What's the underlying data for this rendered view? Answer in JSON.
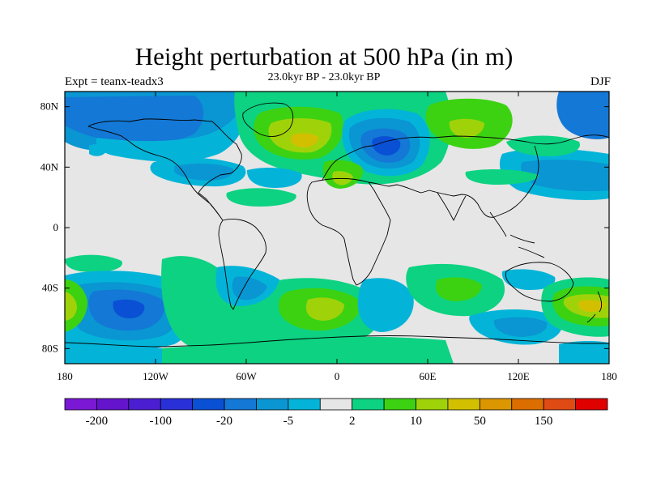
{
  "header": {
    "title": "Height perturbation at 500 hPa (in m)",
    "subtitle": "23.0kyr BP - 23.0kyr BP",
    "left_label": "Expt = teanx-teadx3",
    "right_label": "DJF"
  },
  "map": {
    "lon_range": [
      -180,
      180
    ],
    "lat_range": [
      -90,
      90
    ],
    "lat_ticks": [
      {
        "value": 80,
        "label": "80N"
      },
      {
        "value": 40,
        "label": "40N"
      },
      {
        "value": 0,
        "label": "0"
      },
      {
        "value": -40,
        "label": "40S"
      },
      {
        "value": -80,
        "label": "80S"
      }
    ],
    "lon_ticks": [
      {
        "value": -180,
        "label": "180"
      },
      {
        "value": -120,
        "label": "120W"
      },
      {
        "value": -60,
        "label": "60W"
      },
      {
        "value": 0,
        "label": "0"
      },
      {
        "value": 60,
        "label": "60E"
      },
      {
        "value": 120,
        "label": "120E"
      },
      {
        "value": 180,
        "label": "180"
      }
    ],
    "background_color": "#e6e6e6",
    "coastline_color": "#000000"
  },
  "colorbar": {
    "colors": [
      "#7a18d6",
      "#6414cc",
      "#4c1ed2",
      "#2a30d8",
      "#0a50d4",
      "#1478d6",
      "#0a96d2",
      "#04b4d8",
      "#e6e6e6",
      "#0cd282",
      "#3cd212",
      "#a0d20a",
      "#d2c000",
      "#dc9600",
      "#dc6e00",
      "#e04a14",
      "#e00000"
    ],
    "labels": [
      {
        "boundary": 1,
        "text": "-200"
      },
      {
        "boundary": 3,
        "text": "-100"
      },
      {
        "boundary": 5,
        "text": "-20"
      },
      {
        "boundary": 7,
        "text": "-5"
      },
      {
        "boundary": 9,
        "text": "2"
      },
      {
        "boundary": 11,
        "text": "10"
      },
      {
        "boundary": 13,
        "text": "50"
      },
      {
        "boundary": 15,
        "text": "150"
      }
    ]
  }
}
